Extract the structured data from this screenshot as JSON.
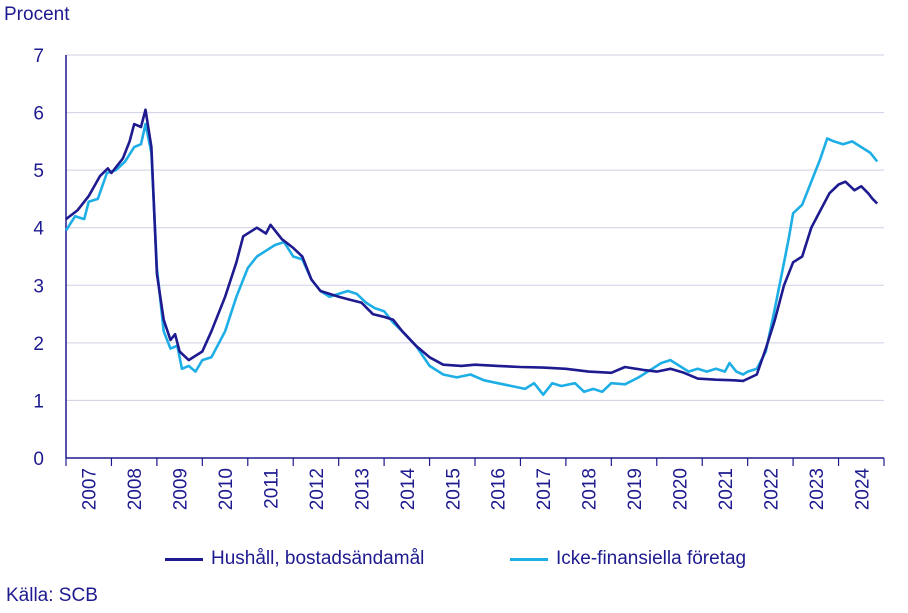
{
  "chart_data": {
    "type": "line",
    "ylabel": "Procent",
    "source": "Källa: SCB",
    "ylim": [
      0,
      7
    ],
    "yticks": [
      "0",
      "1",
      "2",
      "3",
      "4",
      "5",
      "6",
      "7"
    ],
    "xticks": [
      "2007",
      "2008",
      "2009",
      "2010",
      "2011",
      "2012",
      "2013",
      "2014",
      "2015",
      "2016",
      "2017",
      "2018",
      "2019",
      "2020",
      "2021",
      "2022",
      "2023",
      "2024"
    ],
    "grid": true,
    "legend_position": "bottom",
    "series": [
      {
        "name": "Hushåll, bostadsändamål",
        "color": "#1e1a8f",
        "points": [
          [
            2006.0,
            4.15
          ],
          [
            2006.25,
            4.3
          ],
          [
            2006.5,
            4.55
          ],
          [
            2006.75,
            4.9
          ],
          [
            2006.92,
            5.03
          ],
          [
            2007.0,
            4.95
          ],
          [
            2007.25,
            5.2
          ],
          [
            2007.4,
            5.5
          ],
          [
            2007.5,
            5.8
          ],
          [
            2007.65,
            5.75
          ],
          [
            2007.75,
            6.05
          ],
          [
            2007.88,
            5.4
          ],
          [
            2008.0,
            3.2
          ],
          [
            2008.15,
            2.4
          ],
          [
            2008.3,
            2.05
          ],
          [
            2008.4,
            2.15
          ],
          [
            2008.5,
            1.85
          ],
          [
            2008.7,
            1.7
          ],
          [
            2009.0,
            1.85
          ],
          [
            2009.2,
            2.2
          ],
          [
            2009.5,
            2.8
          ],
          [
            2009.75,
            3.4
          ],
          [
            2009.9,
            3.85
          ],
          [
            2010.2,
            4.0
          ],
          [
            2010.4,
            3.9
          ],
          [
            2010.5,
            4.05
          ],
          [
            2010.75,
            3.8
          ],
          [
            2011.0,
            3.65
          ],
          [
            2011.2,
            3.5
          ],
          [
            2011.4,
            3.1
          ],
          [
            2011.6,
            2.9
          ],
          [
            2011.8,
            2.85
          ],
          [
            2012.0,
            2.8
          ],
          [
            2012.25,
            2.75
          ],
          [
            2012.5,
            2.7
          ],
          [
            2012.75,
            2.5
          ],
          [
            2013.0,
            2.45
          ],
          [
            2013.2,
            2.4
          ],
          [
            2013.4,
            2.2
          ],
          [
            2013.7,
            1.95
          ],
          [
            2014.0,
            1.75
          ],
          [
            2014.3,
            1.62
          ],
          [
            2014.7,
            1.6
          ],
          [
            2015.0,
            1.62
          ],
          [
            2015.5,
            1.6
          ],
          [
            2016.0,
            1.58
          ],
          [
            2016.5,
            1.57
          ],
          [
            2017.0,
            1.55
          ],
          [
            2017.5,
            1.5
          ],
          [
            2018.0,
            1.48
          ],
          [
            2018.3,
            1.58
          ],
          [
            2018.7,
            1.53
          ],
          [
            2019.0,
            1.5
          ],
          [
            2019.3,
            1.55
          ],
          [
            2019.6,
            1.48
          ],
          [
            2019.9,
            1.38
          ],
          [
            2020.3,
            1.36
          ],
          [
            2020.7,
            1.35
          ],
          [
            2020.9,
            1.34
          ],
          [
            2021.2,
            1.45
          ],
          [
            2021.4,
            1.9
          ],
          [
            2021.6,
            2.4
          ],
          [
            2021.8,
            3.0
          ],
          [
            2022.0,
            3.4
          ],
          [
            2022.2,
            3.5
          ],
          [
            2022.4,
            4.0
          ],
          [
            2022.6,
            4.3
          ],
          [
            2022.8,
            4.6
          ],
          [
            2023.0,
            4.75
          ],
          [
            2023.15,
            4.8
          ],
          [
            2023.35,
            4.65
          ],
          [
            2023.5,
            4.72
          ],
          [
            2023.65,
            4.6
          ],
          [
            2023.75,
            4.5
          ],
          [
            2023.85,
            4.42
          ]
        ]
      },
      {
        "name": "Icke-finansiella företag",
        "color": "#1eaee6",
        "points": [
          [
            2006.0,
            3.95
          ],
          [
            2006.2,
            4.2
          ],
          [
            2006.4,
            4.15
          ],
          [
            2006.5,
            4.45
          ],
          [
            2006.7,
            4.5
          ],
          [
            2006.9,
            4.95
          ],
          [
            2007.1,
            5.0
          ],
          [
            2007.3,
            5.15
          ],
          [
            2007.5,
            5.4
          ],
          [
            2007.65,
            5.45
          ],
          [
            2007.75,
            5.8
          ],
          [
            2007.88,
            5.3
          ],
          [
            2008.0,
            3.3
          ],
          [
            2008.15,
            2.2
          ],
          [
            2008.3,
            1.9
          ],
          [
            2008.45,
            1.95
          ],
          [
            2008.55,
            1.55
          ],
          [
            2008.7,
            1.6
          ],
          [
            2008.85,
            1.5
          ],
          [
            2009.0,
            1.7
          ],
          [
            2009.2,
            1.75
          ],
          [
            2009.5,
            2.2
          ],
          [
            2009.75,
            2.8
          ],
          [
            2010.0,
            3.3
          ],
          [
            2010.2,
            3.5
          ],
          [
            2010.4,
            3.6
          ],
          [
            2010.6,
            3.7
          ],
          [
            2010.8,
            3.75
          ],
          [
            2011.0,
            3.5
          ],
          [
            2011.2,
            3.45
          ],
          [
            2011.4,
            3.1
          ],
          [
            2011.6,
            2.9
          ],
          [
            2011.8,
            2.8
          ],
          [
            2012.0,
            2.85
          ],
          [
            2012.2,
            2.9
          ],
          [
            2012.4,
            2.85
          ],
          [
            2012.6,
            2.7
          ],
          [
            2012.8,
            2.6
          ],
          [
            2013.0,
            2.55
          ],
          [
            2013.2,
            2.35
          ],
          [
            2013.4,
            2.2
          ],
          [
            2013.7,
            1.95
          ],
          [
            2014.0,
            1.6
          ],
          [
            2014.3,
            1.45
          ],
          [
            2014.6,
            1.4
          ],
          [
            2014.9,
            1.45
          ],
          [
            2015.2,
            1.35
          ],
          [
            2015.5,
            1.3
          ],
          [
            2015.8,
            1.25
          ],
          [
            2016.1,
            1.2
          ],
          [
            2016.3,
            1.3
          ],
          [
            2016.5,
            1.1
          ],
          [
            2016.7,
            1.3
          ],
          [
            2016.9,
            1.25
          ],
          [
            2017.2,
            1.3
          ],
          [
            2017.4,
            1.15
          ],
          [
            2017.6,
            1.2
          ],
          [
            2017.8,
            1.15
          ],
          [
            2018.0,
            1.3
          ],
          [
            2018.3,
            1.28
          ],
          [
            2018.6,
            1.4
          ],
          [
            2018.9,
            1.55
          ],
          [
            2019.1,
            1.65
          ],
          [
            2019.3,
            1.7
          ],
          [
            2019.5,
            1.6
          ],
          [
            2019.7,
            1.5
          ],
          [
            2019.9,
            1.55
          ],
          [
            2020.1,
            1.5
          ],
          [
            2020.3,
            1.55
          ],
          [
            2020.5,
            1.5
          ],
          [
            2020.6,
            1.65
          ],
          [
            2020.75,
            1.5
          ],
          [
            2020.9,
            1.45
          ],
          [
            2021.0,
            1.5
          ],
          [
            2021.2,
            1.55
          ],
          [
            2021.4,
            1.85
          ],
          [
            2021.6,
            2.6
          ],
          [
            2021.75,
            3.2
          ],
          [
            2021.9,
            3.8
          ],
          [
            2022.0,
            4.25
          ],
          [
            2022.2,
            4.4
          ],
          [
            2022.4,
            4.8
          ],
          [
            2022.6,
            5.2
          ],
          [
            2022.75,
            5.55
          ],
          [
            2022.9,
            5.5
          ],
          [
            2023.1,
            5.45
          ],
          [
            2023.3,
            5.5
          ],
          [
            2023.5,
            5.4
          ],
          [
            2023.7,
            5.3
          ],
          [
            2023.85,
            5.15
          ]
        ]
      }
    ]
  }
}
